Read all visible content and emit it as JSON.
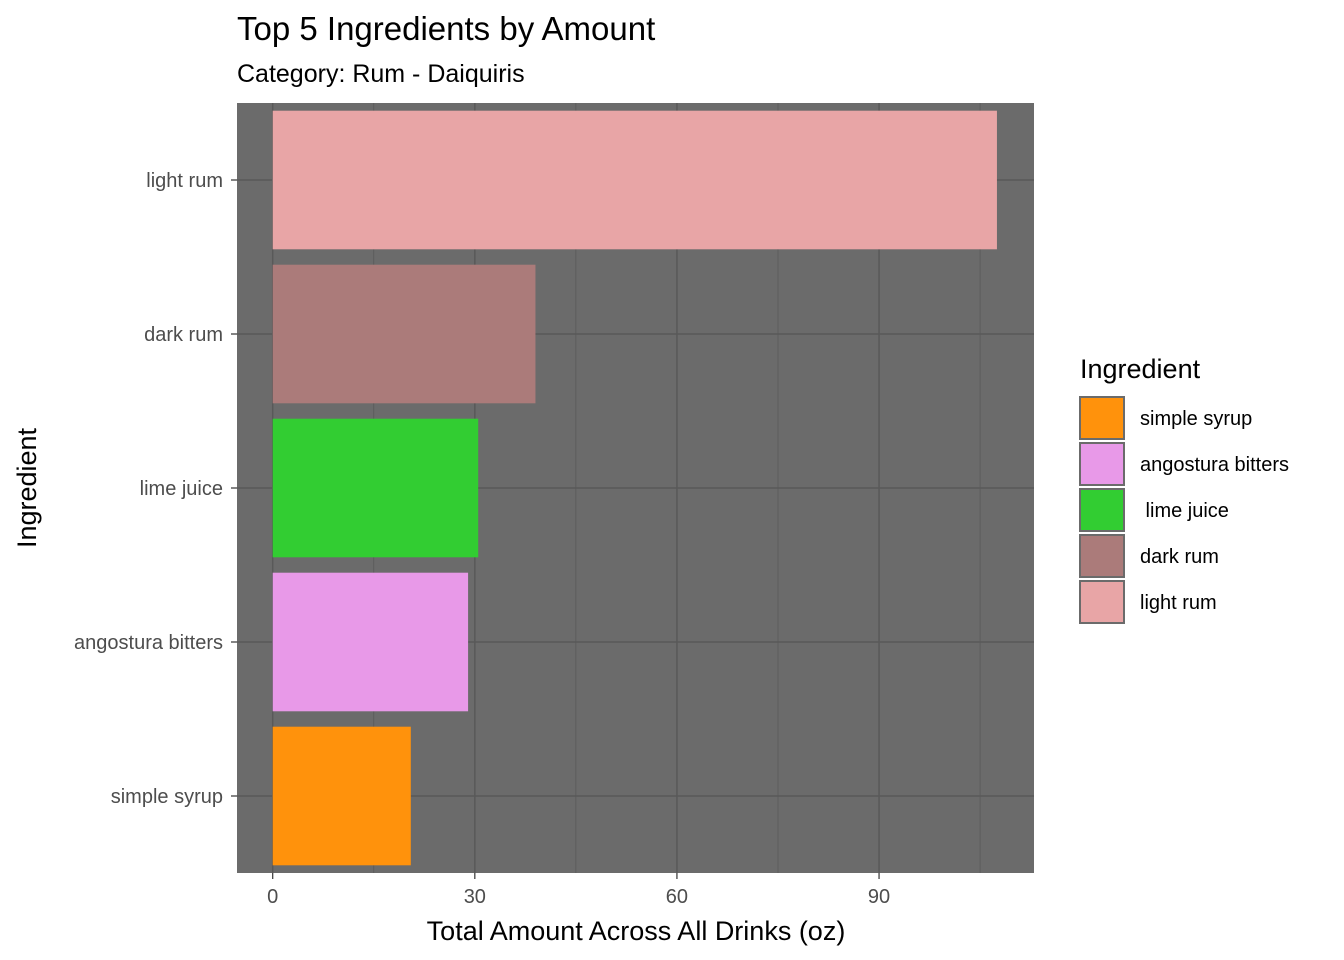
{
  "chart_data": {
    "type": "bar",
    "orientation": "horizontal",
    "title": "Top 5 Ingredients by Amount",
    "subtitle": "Category: Rum - Daiquiris",
    "xlabel": "Total Amount Across All Drinks (oz)",
    "ylabel": "Ingredient",
    "xlim": [
      -5.3,
      113
    ],
    "xticks": [
      0,
      30,
      60,
      90
    ],
    "grid": true,
    "categories": [
      "light rum",
      "dark rum",
      "lime juice",
      "angostura bitters",
      "simple syrup"
    ],
    "values": [
      107.5,
      39,
      30.5,
      29,
      20.5
    ],
    "colors": [
      "#e8a5a6",
      "#ab7b7a",
      "#32cd32",
      "#e899e8",
      "#ff920c"
    ],
    "panel_background": "#6b6b6b",
    "grid_color": "#595959",
    "legend": {
      "title": "Ingredient",
      "position": "right",
      "items": [
        {
          "label": "simple syrup",
          "color": "#ff920c"
        },
        {
          "label": "angostura bitters",
          "color": "#e899e8"
        },
        {
          "label": " lime juice",
          "color": "#32cd32"
        },
        {
          "label": "dark rum",
          "color": "#ab7b7a"
        },
        {
          "label": "light rum",
          "color": "#e8a5a6"
        }
      ]
    }
  }
}
